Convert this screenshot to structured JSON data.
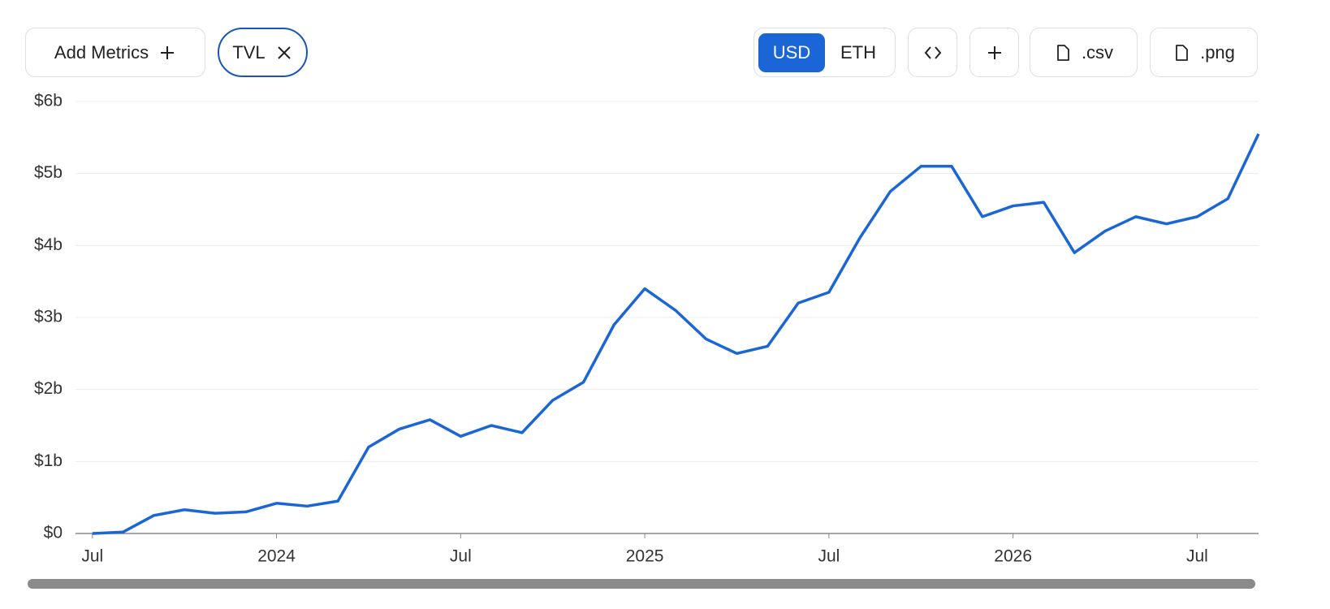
{
  "toolbar": {
    "add_metrics": "Add Metrics",
    "metric_chip": "TVL",
    "currency_options": [
      "USD",
      "ETH"
    ],
    "selected_currency": "USD",
    "csv": ".csv",
    "png": ".png"
  },
  "chart_data": {
    "type": "line",
    "x": [
      "2023-06",
      "2023-07",
      "2023-08",
      "2023-09",
      "2023-10",
      "2023-11",
      "2023-12",
      "2024-01",
      "2024-02",
      "2024-03",
      "2024-04",
      "2024-05",
      "2024-06",
      "2024-07",
      "2024-08",
      "2024-09",
      "2024-10",
      "2024-11",
      "2024-12",
      "2025-01",
      "2025-02",
      "2025-03",
      "2025-04",
      "2025-05",
      "2025-06",
      "2025-07",
      "2025-08",
      "2025-09",
      "2025-10",
      "2025-11",
      "2025-12",
      "2026-01",
      "2026-02",
      "2026-03",
      "2026-04",
      "2026-05",
      "2026-06",
      "2026-07",
      "2026-08",
      "2026-09"
    ],
    "series": [
      {
        "name": "TVL",
        "color": "#1a66d6",
        "values": [
          null,
          0,
          0.02,
          0.25,
          0.33,
          0.28,
          0.3,
          0.42,
          0.38,
          0.45,
          1.2,
          1.45,
          1.58,
          1.35,
          1.5,
          1.4,
          1.85,
          2.1,
          2.9,
          3.4,
          3.1,
          2.7,
          2.5,
          2.6,
          3.2,
          3.35,
          4.1,
          4.75,
          5.1,
          5.1,
          4.4,
          4.55,
          4.6,
          3.9,
          4.2,
          4.4,
          4.3,
          4.4,
          4.65,
          5.55
        ]
      }
    ],
    "xlim": [
      "2023-06",
      "2026-09"
    ],
    "xticks": [
      {
        "value": "2023-07",
        "label": "Jul"
      },
      {
        "value": "2024-01",
        "label": "2024"
      },
      {
        "value": "2024-07",
        "label": "Jul"
      },
      {
        "value": "2025-01",
        "label": "2025"
      },
      {
        "value": "2025-07",
        "label": "Jul"
      },
      {
        "value": "2026-01",
        "label": "2026"
      },
      {
        "value": "2026-07",
        "label": "Jul"
      }
    ],
    "ylim": [
      0,
      6
    ],
    "yticks": [
      {
        "value": 0,
        "label": "$0"
      },
      {
        "value": 1,
        "label": "$1b"
      },
      {
        "value": 2,
        "label": "$2b"
      },
      {
        "value": 3,
        "label": "$3b"
      },
      {
        "value": 4,
        "label": "$4b"
      },
      {
        "value": 5,
        "label": "$5b"
      },
      {
        "value": 6,
        "label": "$6b"
      }
    ],
    "grid": true
  }
}
